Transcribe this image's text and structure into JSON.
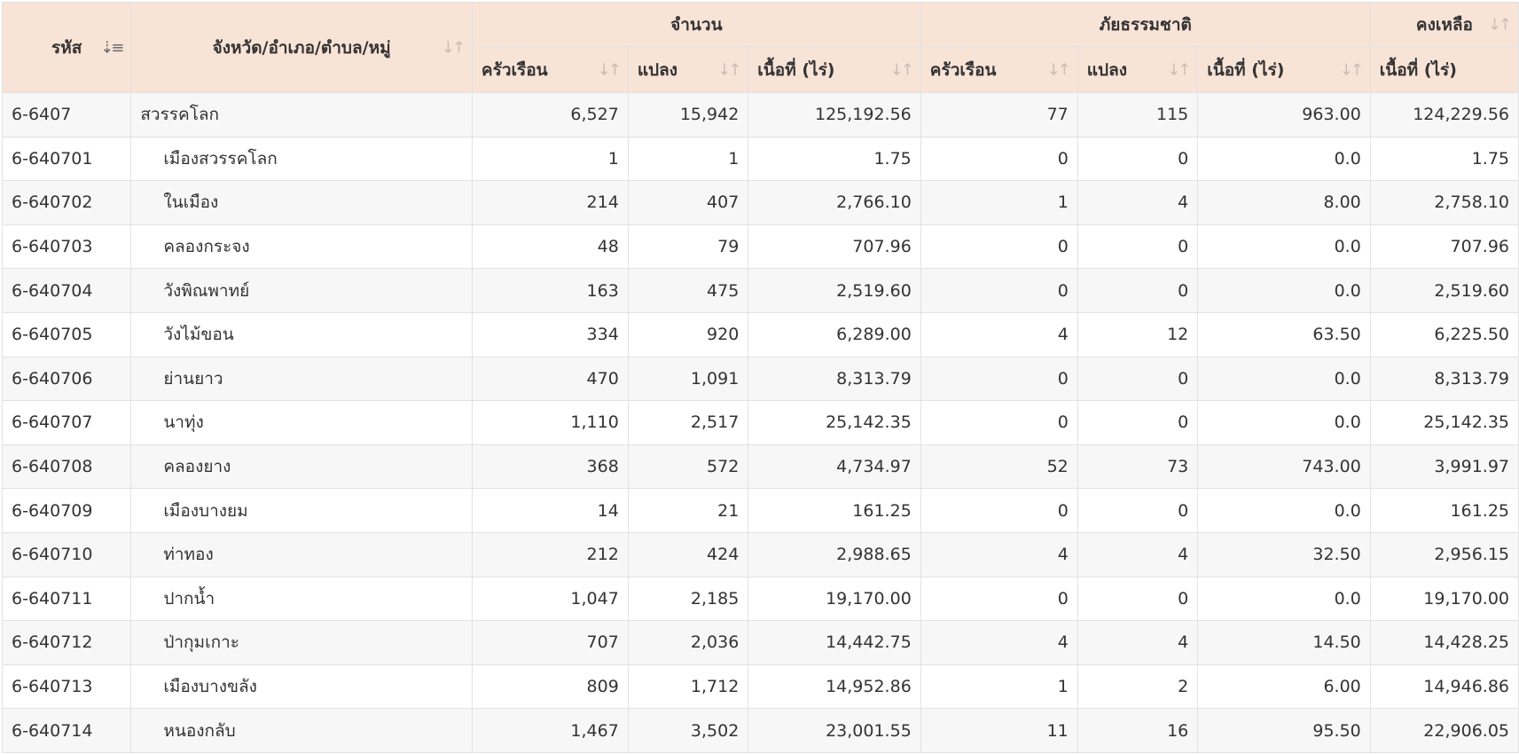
{
  "headers": {
    "code": "รหัส",
    "area_name": "จังหวัด/อำเภอ/ตำบล/หมู่",
    "group_total": "จำนวน",
    "group_disaster": "ภัยธรรมชาติ",
    "group_remaining": "คงเหลือ",
    "households": "ครัวเรือน",
    "plots": "แปลง",
    "area_rai": "เนื้อที่ (ไร่)"
  },
  "icons": {
    "sort_active": "sort-descending-icon",
    "sort_inactive": "sort-both-icon",
    "sort_active_glyph": "⇣≡",
    "sort_inactive_glyph": "↓↑"
  },
  "colors": {
    "header_bg": "#f8e3d7",
    "row_alt_bg": "#f7f7f7",
    "border": "#e2e2e2"
  },
  "rows": [
    {
      "code": "6-6407",
      "name": "สวรรคโลก",
      "indent": false,
      "t_hh": "6,527",
      "t_plots": "15,942",
      "t_area": "125,192.56",
      "d_hh": "77",
      "d_plots": "115",
      "d_area": "963.00",
      "r_area": "124,229.56"
    },
    {
      "code": "6-640701",
      "name": "เมืองสวรรคโลก",
      "indent": true,
      "t_hh": "1",
      "t_plots": "1",
      "t_area": "1.75",
      "d_hh": "0",
      "d_plots": "0",
      "d_area": "0.0",
      "r_area": "1.75"
    },
    {
      "code": "6-640702",
      "name": "ในเมือง",
      "indent": true,
      "t_hh": "214",
      "t_plots": "407",
      "t_area": "2,766.10",
      "d_hh": "1",
      "d_plots": "4",
      "d_area": "8.00",
      "r_area": "2,758.10"
    },
    {
      "code": "6-640703",
      "name": "คลองกระจง",
      "indent": true,
      "t_hh": "48",
      "t_plots": "79",
      "t_area": "707.96",
      "d_hh": "0",
      "d_plots": "0",
      "d_area": "0.0",
      "r_area": "707.96"
    },
    {
      "code": "6-640704",
      "name": "วังพิณพาทย์",
      "indent": true,
      "t_hh": "163",
      "t_plots": "475",
      "t_area": "2,519.60",
      "d_hh": "0",
      "d_plots": "0",
      "d_area": "0.0",
      "r_area": "2,519.60"
    },
    {
      "code": "6-640705",
      "name": "วังไม้ขอน",
      "indent": true,
      "t_hh": "334",
      "t_plots": "920",
      "t_area": "6,289.00",
      "d_hh": "4",
      "d_plots": "12",
      "d_area": "63.50",
      "r_area": "6,225.50"
    },
    {
      "code": "6-640706",
      "name": "ย่านยาว",
      "indent": true,
      "t_hh": "470",
      "t_plots": "1,091",
      "t_area": "8,313.79",
      "d_hh": "0",
      "d_plots": "0",
      "d_area": "0.0",
      "r_area": "8,313.79"
    },
    {
      "code": "6-640707",
      "name": "นาทุ่ง",
      "indent": true,
      "t_hh": "1,110",
      "t_plots": "2,517",
      "t_area": "25,142.35",
      "d_hh": "0",
      "d_plots": "0",
      "d_area": "0.0",
      "r_area": "25,142.35"
    },
    {
      "code": "6-640708",
      "name": "คลองยาง",
      "indent": true,
      "t_hh": "368",
      "t_plots": "572",
      "t_area": "4,734.97",
      "d_hh": "52",
      "d_plots": "73",
      "d_area": "743.00",
      "r_area": "3,991.97"
    },
    {
      "code": "6-640709",
      "name": "เมืองบางยม",
      "indent": true,
      "t_hh": "14",
      "t_plots": "21",
      "t_area": "161.25",
      "d_hh": "0",
      "d_plots": "0",
      "d_area": "0.0",
      "r_area": "161.25"
    },
    {
      "code": "6-640710",
      "name": "ท่าทอง",
      "indent": true,
      "t_hh": "212",
      "t_plots": "424",
      "t_area": "2,988.65",
      "d_hh": "4",
      "d_plots": "4",
      "d_area": "32.50",
      "r_area": "2,956.15"
    },
    {
      "code": "6-640711",
      "name": "ปากน้ำ",
      "indent": true,
      "t_hh": "1,047",
      "t_plots": "2,185",
      "t_area": "19,170.00",
      "d_hh": "0",
      "d_plots": "0",
      "d_area": "0.0",
      "r_area": "19,170.00"
    },
    {
      "code": "6-640712",
      "name": "ป่ากุมเกาะ",
      "indent": true,
      "t_hh": "707",
      "t_plots": "2,036",
      "t_area": "14,442.75",
      "d_hh": "4",
      "d_plots": "4",
      "d_area": "14.50",
      "r_area": "14,428.25"
    },
    {
      "code": "6-640713",
      "name": "เมืองบางขลัง",
      "indent": true,
      "t_hh": "809",
      "t_plots": "1,712",
      "t_area": "14,952.86",
      "d_hh": "1",
      "d_plots": "2",
      "d_area": "6.00",
      "r_area": "14,946.86"
    },
    {
      "code": "6-640714",
      "name": "หนองกลับ",
      "indent": true,
      "t_hh": "1,467",
      "t_plots": "3,502",
      "t_area": "23,001.55",
      "d_hh": "11",
      "d_plots": "16",
      "d_area": "95.50",
      "r_area": "22,906.05"
    }
  ]
}
